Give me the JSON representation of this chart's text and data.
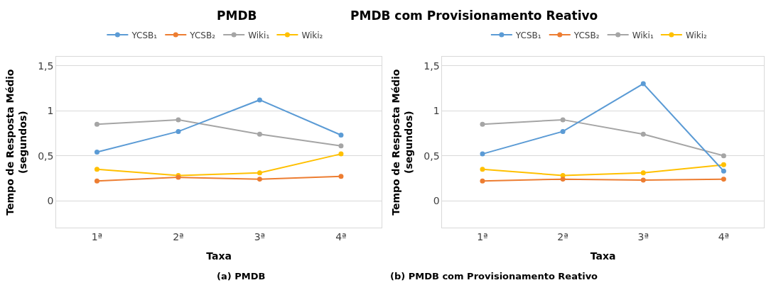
{
  "chart_data": [
    {
      "type": "line",
      "title": "PMDB",
      "xlabel": "Taxa",
      "ylabel": "Tempo de Resposta Médio\n(segundos)",
      "annotations": [
        "(a) PMDB"
      ],
      "categories": [
        "1ª",
        "2ª",
        "3ª",
        "4ª"
      ],
      "ylim": [
        -0.3,
        1.6
      ],
      "yticks": [
        {
          "value": 0,
          "label": "0"
        },
        {
          "value": 0.5,
          "label": "0,5"
        },
        {
          "value": 1,
          "label": "1"
        },
        {
          "value": 1.5,
          "label": "1,5"
        }
      ],
      "grid": "y",
      "legend": "top",
      "marker": "circle",
      "line_style": "solid",
      "series": [
        {
          "name": "YCSB₁",
          "color": "#5b9bd5",
          "values": [
            0.54,
            0.77,
            1.12,
            0.73
          ]
        },
        {
          "name": "YCSB₂",
          "color": "#ed7d31",
          "values": [
            0.22,
            0.26,
            0.24,
            0.27
          ]
        },
        {
          "name": "Wiki₁",
          "color": "#a5a5a5",
          "values": [
            0.85,
            0.9,
            0.74,
            0.61
          ]
        },
        {
          "name": "Wiki₂",
          "color": "#ffc000",
          "values": [
            0.35,
            0.28,
            0.31,
            0.52
          ]
        }
      ]
    },
    {
      "type": "line",
      "title": "PMDB com Provisionamento Reativo",
      "xlabel": "Taxa",
      "ylabel": "Tempo de Resposta Médio\n(segundos)",
      "annotations": [
        "(b) PMDB com Provisionamento Reativo"
      ],
      "categories": [
        "1ª",
        "2ª",
        "3ª",
        "4ª"
      ],
      "ylim": [
        -0.3,
        1.6
      ],
      "yticks": [
        {
          "value": 0,
          "label": "0"
        },
        {
          "value": 0.5,
          "label": "0,5"
        },
        {
          "value": 1,
          "label": "1"
        },
        {
          "value": 1.5,
          "label": "1,5"
        }
      ],
      "grid": "y",
      "legend": "top",
      "marker": "circle",
      "line_style": "solid",
      "series": [
        {
          "name": "YCSB₁",
          "color": "#5b9bd5",
          "values": [
            0.52,
            0.77,
            1.3,
            0.33
          ]
        },
        {
          "name": "YCSB₂",
          "color": "#ed7d31",
          "values": [
            0.22,
            0.24,
            0.23,
            0.24
          ]
        },
        {
          "name": "Wiki₁",
          "color": "#a5a5a5",
          "values": [
            0.85,
            0.9,
            0.74,
            0.5
          ]
        },
        {
          "name": "Wiki₂",
          "color": "#ffc000",
          "values": [
            0.35,
            0.28,
            0.31,
            0.4
          ]
        }
      ]
    }
  ]
}
